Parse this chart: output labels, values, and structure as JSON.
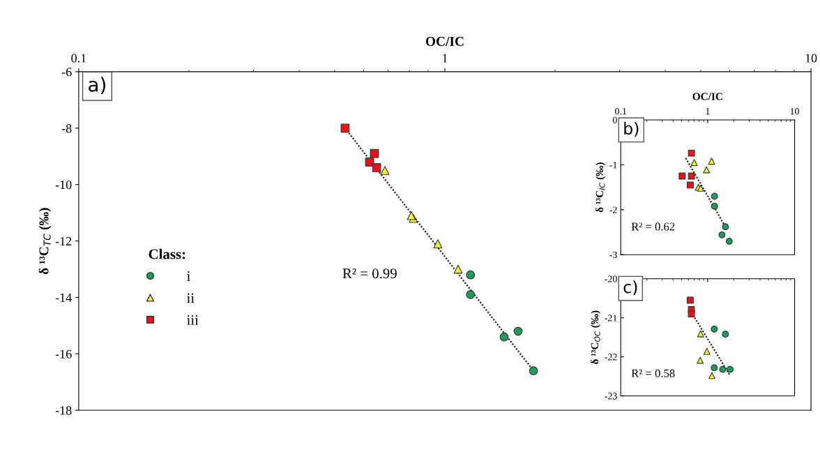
{
  "chart_data": [
    {
      "type": "scatter",
      "xlabel": "OC/IC",
      "ylabel": "δ ¹³C$_{TC}$ (‰)",
      "log": "x",
      "xlim": [
        0.1,
        10
      ],
      "xticks": [
        0.1,
        1,
        10
      ],
      "ylim": [
        -18,
        -6
      ],
      "yticks": [
        -18,
        -16,
        -14,
        -12,
        -10,
        -8,
        -6
      ],
      "grid": false,
      "legend": "left",
      "legend_title": "Class:",
      "annotations": [
        "a)",
        "R² = 0.99"
      ],
      "series": [
        {
          "name": "i",
          "color": "#1f9a5c",
          "marker": "circle",
          "x": [
            1.175,
            1.175,
            1.585,
            1.452,
            1.746
          ],
          "values": [
            -13.2,
            -13.9,
            -15.2,
            -15.4,
            -16.6
          ]
        },
        {
          "name": "ii",
          "color": "#f2f23a",
          "marker": "triangle",
          "x": [
            0.686,
            0.82,
            0.81,
            0.957,
            1.087
          ],
          "values": [
            -9.5,
            -11.2,
            -11.1,
            -12.1,
            -13.0
          ]
        },
        {
          "name": "iii",
          "color": "#e3141c",
          "marker": "square",
          "x": [
            0.534,
            0.642,
            0.623,
            0.651
          ],
          "values": [
            -8.0,
            -8.9,
            -9.2,
            -9.4
          ]
        },
        {
          "type": "line",
          "color": "#222222",
          "line_style": "dotted",
          "marker": "none",
          "x": [
            0.534,
            1.746
          ],
          "values": [
            -8.0,
            -16.6
          ]
        }
      ]
    },
    {
      "type": "scatter",
      "xlabel": "OC/IC",
      "ylabel": "δ ¹³C$_{IC}$ (‰)",
      "log": "x",
      "xlim": [
        0.1,
        10
      ],
      "xticks": [
        0.1,
        1,
        10
      ],
      "ylim": [
        -3,
        0
      ],
      "yticks": [
        -3,
        -2,
        -1,
        0
      ],
      "grid": false,
      "annotations": [
        "b)",
        "R² = 0.62"
      ],
      "series": [
        {
          "color": "#1f9a5c",
          "marker": "circle",
          "x": [
            1.2,
            1.2,
            1.6,
            1.46,
            1.77
          ],
          "values": [
            -1.7,
            -1.92,
            -2.38,
            -2.56,
            -2.7
          ]
        },
        {
          "color": "#f2f23a",
          "marker": "triangle",
          "x": [
            0.7,
            1.11,
            0.97,
            0.78,
            0.83
          ],
          "values": [
            -0.95,
            -0.92,
            -1.11,
            -1.5,
            -1.52
          ]
        },
        {
          "color": "#e3141c",
          "marker": "square",
          "x": [
            0.651,
            0.509,
            0.651,
            0.63
          ],
          "values": [
            -0.74,
            -1.25,
            -1.25,
            -1.45
          ]
        },
        {
          "type": "line",
          "color": "#222222",
          "line_style": "dotted",
          "marker": "none",
          "x": [
            0.56,
            1.6
          ],
          "values": [
            -0.85,
            -2.38
          ]
        }
      ]
    },
    {
      "type": "scatter",
      "ylabel": "δ ¹³C$_{OC}$ (‰)",
      "log": "x",
      "xlim": [
        0.1,
        10
      ],
      "xticks": [
        {
          "value": 0.1,
          "label": null
        },
        {
          "value": 1,
          "label": null
        },
        {
          "value": 10,
          "label": null
        }
      ],
      "ylim": [
        -23,
        -20
      ],
      "yticks": [
        -23,
        -22,
        -21,
        -20
      ],
      "grid": false,
      "tick_labels": "y",
      "annotations": [
        "c)",
        "R² = 0.58"
      ],
      "series": [
        {
          "color": "#1f9a5c",
          "marker": "circle",
          "x": [
            1.19,
            1.6,
            1.19,
            1.49,
            1.81
          ],
          "values": [
            -21.29,
            -21.42,
            -22.28,
            -22.32,
            -22.32
          ]
        },
        {
          "color": "#f2f23a",
          "marker": "triangle",
          "x": [
            0.83,
            0.98,
            0.82,
            1.12
          ],
          "values": [
            -21.41,
            -21.86,
            -22.09,
            -22.48
          ]
        },
        {
          "color": "#e3141c",
          "marker": "square",
          "x": [
            0.63,
            0.65,
            0.65
          ],
          "values": [
            -20.55,
            -20.79,
            -20.9
          ]
        },
        {
          "type": "line",
          "color": "#222222",
          "line_style": "dotted",
          "marker": "none",
          "x": [
            0.65,
            1.81
          ],
          "values": [
            -20.86,
            -22.48
          ]
        }
      ]
    }
  ]
}
